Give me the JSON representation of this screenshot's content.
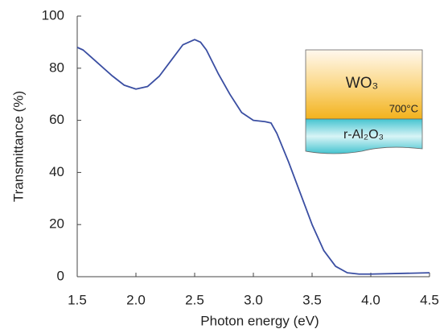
{
  "chart_data": {
    "type": "line",
    "x_label": "Photon energy (eV)",
    "y_label": "Transmittance (%)",
    "x": [
      1.5,
      1.55,
      1.6,
      1.7,
      1.8,
      1.9,
      2.0,
      2.1,
      2.2,
      2.3,
      2.4,
      2.5,
      2.55,
      2.6,
      2.7,
      2.8,
      2.9,
      3.0,
      3.1,
      3.15,
      3.2,
      3.3,
      3.4,
      3.5,
      3.6,
      3.7,
      3.8,
      3.9,
      4.0,
      4.5
    ],
    "values": [
      88,
      87,
      85,
      81,
      77,
      73.5,
      72,
      73,
      77,
      83,
      89,
      91,
      90,
      87,
      78,
      70,
      63,
      60,
      59.5,
      59,
      55,
      44,
      32,
      20,
      10,
      4,
      1.5,
      1,
      1,
      1.5
    ],
    "color": "#3a4ea2",
    "xlim": [
      1.5,
      4.5
    ],
    "xticks": [
      1.5,
      {
        "value": 2,
        "label": "2.0"
      },
      2.5,
      {
        "value": 3,
        "label": "3.0"
      },
      3.5,
      {
        "value": 4,
        "label": "4.0"
      },
      4.5
    ],
    "ylim": [
      0,
      100
    ],
    "yticks": [
      0,
      20,
      40,
      60,
      80,
      100
    ],
    "annotations": [
      "WO₃",
      "700°C",
      "r-Al₂O₃"
    ]
  }
}
